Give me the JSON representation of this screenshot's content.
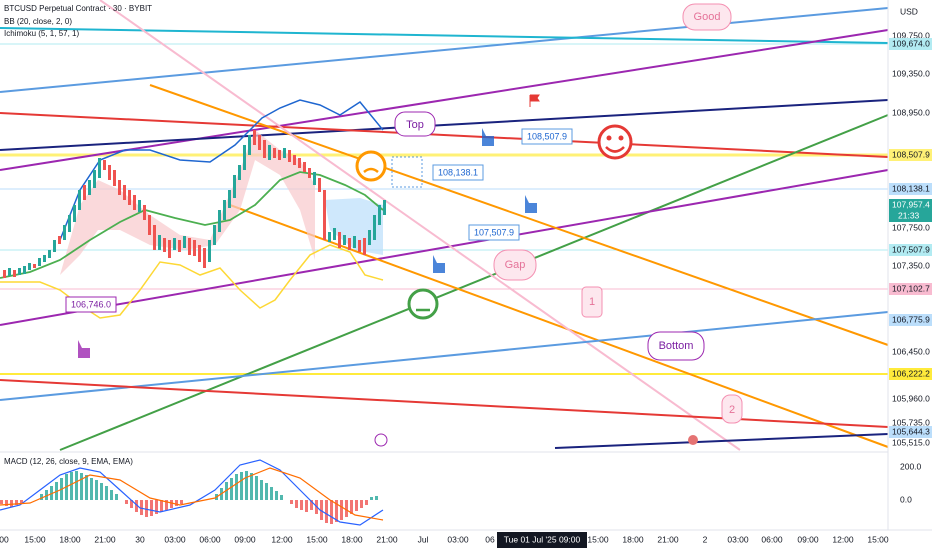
{
  "header": {
    "symbol": "BTCUSD Perpetual Contract · 30 · BYBIT",
    "bb": "BB (20, close, 2, 0)",
    "ichimoku": "Ichimoku (5, 1, 57, 1)"
  },
  "macd": {
    "label": "MACD (12, 26, close, 9, EMA, EMA)",
    "ticks": [
      "200.0",
      "0.0"
    ]
  },
  "price_axis": {
    "currency": "USD",
    "ticks": [
      "109,750.0",
      "109,350.0",
      "108,950.0",
      "107,750.0",
      "107,350.0",
      "106,450.0",
      "105,960.0",
      "105,735.0",
      "105,515.0"
    ],
    "markers": [
      "109,674.0",
      "108,507.9",
      "108,138.1",
      "107,957.4",
      "21:33",
      "107,507.9",
      "107,102.7",
      "106,775.9",
      "106,222.2",
      "105,644.3"
    ]
  },
  "time_axis": {
    "ticks": [
      "00",
      "15:00",
      "18:00",
      "21:00",
      "30",
      "03:00",
      "06:00",
      "09:00",
      "12:00",
      "15:00",
      "18:00",
      "21:00",
      "Jul",
      "03:00",
      "06",
      "15:00",
      "18:00",
      "21:00",
      "2",
      "03:00",
      "06:00",
      "09:00",
      "12:00",
      "15:00"
    ],
    "cursor": "Tue 01 Jul '25  09:00"
  },
  "annotations": {
    "good": "Good",
    "top": "Top",
    "price_1": "108,507.9",
    "price_2": "108,138.1",
    "price_3": "107,507.9",
    "gap": "Gap",
    "one": "1",
    "bottom": "Bottom",
    "two": "2",
    "price_4": "106,746.0"
  }
}
